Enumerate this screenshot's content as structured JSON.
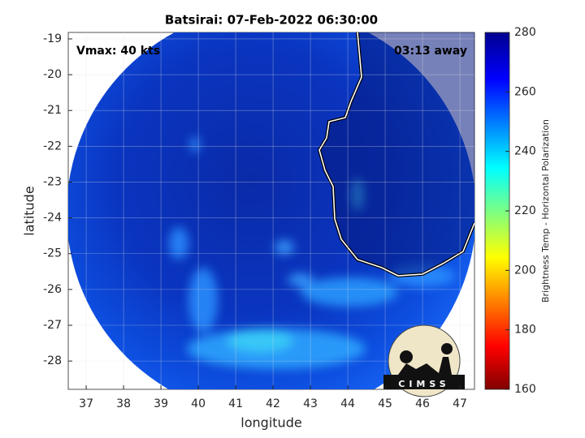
{
  "map": {
    "title": "Batsirai: 07-Feb-2022 06:30:00",
    "annotation_left": "Vmax: 40 kts",
    "annotation_right": "03:13 away",
    "xlabel": "longitude",
    "ylabel": "latitude",
    "xlim": [
      36.52,
      47.39
    ],
    "ylim": [
      -28.79,
      -18.82
    ],
    "xticks": [
      37,
      38,
      39,
      40,
      41,
      42,
      43,
      44,
      45,
      46,
      47
    ],
    "yticks": [
      -19,
      -20,
      -21,
      -22,
      -23,
      -24,
      -25,
      -26,
      -27,
      -28
    ],
    "grid": true,
    "colorbar": {
      "label": "Brightness Temp - Horizontal Polarization",
      "clim": [
        160,
        280
      ],
      "ticks": [
        160,
        180,
        200,
        220,
        240,
        260,
        280
      ]
    },
    "logo": "CIMSS"
  }
}
